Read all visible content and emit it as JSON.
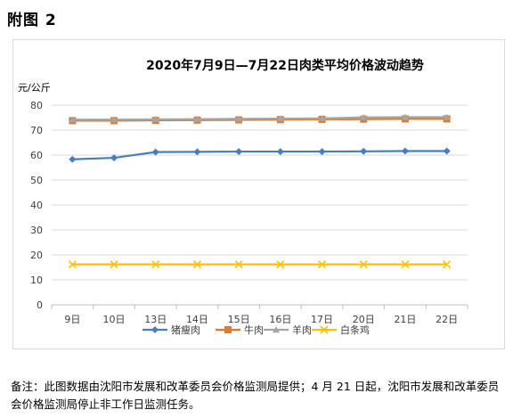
{
  "figure_label": "附图 2",
  "footnote": "备注：此图数据由沈阳市发展和改革委员会价格监测局提供；4 月 21 日起，沈阳市发展和改革委员会价格监测局停止非工作日监测任务。",
  "chart_data": {
    "type": "line",
    "title": "2020年7月9日—7月22日肉类平均价格波动趋势",
    "ylabel": "元/公斤",
    "xlabel": "",
    "categories": [
      "9日",
      "10日",
      "13日",
      "14日",
      "15日",
      "16日",
      "17日",
      "20日",
      "21日",
      "22日"
    ],
    "ylim": [
      0,
      80
    ],
    "yticks": [
      0,
      10,
      20,
      30,
      40,
      50,
      60,
      70,
      80
    ],
    "grid": true,
    "legend_position": "bottom",
    "series": [
      {
        "name": "猪瘦肉",
        "color": "#4a7ebb",
        "marker": "diamond",
        "values": [
          58.3,
          58.9,
          61.2,
          61.3,
          61.4,
          61.4,
          61.4,
          61.5,
          61.6,
          61.6
        ]
      },
      {
        "name": "牛肉",
        "color": "#e07b2b",
        "marker": "square",
        "values": [
          73.8,
          73.8,
          73.9,
          74.0,
          74.1,
          74.2,
          74.3,
          74.4,
          74.5,
          74.5
        ]
      },
      {
        "name": "羊肉",
        "color": "#a5a5a5",
        "marker": "triangle",
        "values": [
          74.2,
          74.2,
          74.3,
          74.4,
          74.5,
          74.6,
          74.7,
          75.1,
          75.2,
          75.2
        ]
      },
      {
        "name": "白条鸡",
        "color": "#ffc000",
        "marker": "x",
        "values": [
          16.2,
          16.2,
          16.2,
          16.2,
          16.2,
          16.2,
          16.2,
          16.2,
          16.2,
          16.2
        ]
      }
    ]
  }
}
